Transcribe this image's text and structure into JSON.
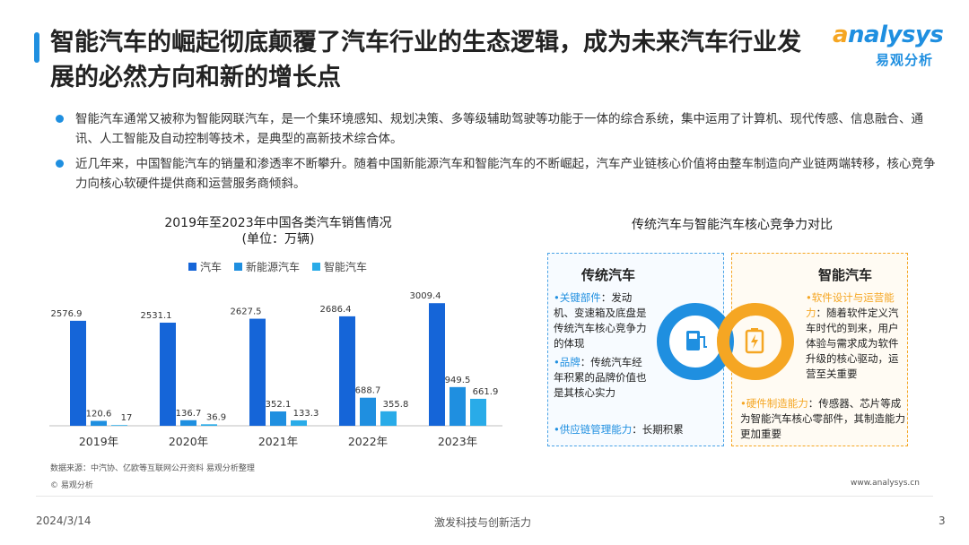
{
  "header": {
    "title": "智能汽车的崛起彻底颠覆了汽车行业的生态逻辑，成为未来汽车行业发展的必然方向和新的增长点",
    "logo_en_a": "a",
    "logo_en_rest": "nalysys",
    "logo_cn": "易观分析"
  },
  "bullets": [
    "智能汽车通常又被称为智能网联汽车，是一个集环境感知、规划决策、多等级辅助驾驶等功能于一体的综合系统，集中运用了计算机、现代传感、信息融合、通讯、人工智能及自动控制等技术，是典型的高新技术综合体。",
    "近几年来，中国智能汽车的销量和渗透率不断攀升。随着中国新能源汽车和智能汽车的不断崛起，汽车产业链核心价值将由整车制造向产业链两端转移，核心竞争力向核心软硬件提供商和运营服务商倾斜。"
  ],
  "chart_data": {
    "type": "bar",
    "title": "2019年至2023年中国各类汽车销售情况",
    "subtitle": "(单位：万辆)",
    "categories": [
      "2019年",
      "2020年",
      "2021年",
      "2022年",
      "2023年"
    ],
    "series": [
      {
        "name": "汽车",
        "color": "#1565d8",
        "values": [
          2576.9,
          2531.1,
          2627.5,
          2686.4,
          3009.4
        ]
      },
      {
        "name": "新能源汽车",
        "color": "#1f8fe0",
        "values": [
          120.6,
          136.7,
          352.1,
          688.7,
          949.5
        ]
      },
      {
        "name": "智能汽车",
        "color": "#29abe8",
        "values": [
          17,
          36.9,
          133.3,
          355.8,
          661.9
        ]
      }
    ],
    "value_labels": [
      [
        "2576.9",
        "2531.1",
        "2627.5",
        "2686.4",
        "3009.4"
      ],
      [
        "120.6",
        "136.7",
        "352.1",
        "688.7",
        "949.5"
      ],
      [
        "17",
        "36.9",
        "133.3",
        "355.8",
        "661.9"
      ]
    ],
    "ylim": [
      0,
      3300
    ],
    "grid": false,
    "legend": "top-center"
  },
  "chart_source": "数据来源：中汽协、亿欧等互联网公开资料 易观分析整理",
  "copyright": "© 易观分析",
  "website": "www.analysys.cn",
  "comparison": {
    "title": "传统汽车与智能汽车核心竞争力对比",
    "left": {
      "title": "传统汽车",
      "p1_key": "关键部件",
      "p1_rest": "：发动机、变速箱及底盘是传统汽车核心竞争力的体现",
      "p2_key": "品牌",
      "p2_rest": "：传统汽车经年积累的品牌价值也是其核心实力",
      "p3_key": "供应链管理能力",
      "p3_rest": "：长期积累"
    },
    "right": {
      "title": "智能汽车",
      "p1_key": "软件设计与运营能力",
      "p1_rest": "：随着软件定义汽车时代的到来，用户体验与需求成为软件升级的核心驱动，运营至关重要",
      "p2_key": "硬件制造能力",
      "p2_rest": "：传感器、芯片等成为智能汽车核心零部件，其制造能力更加重要"
    },
    "left_icon": "fuel-pump-icon",
    "right_icon": "battery-charge-icon"
  },
  "footer": {
    "date": "2024/3/14",
    "slogan": "激发科技与创新活力",
    "page": "3"
  },
  "colors": {
    "accent_blue": "#1f8fe0",
    "accent_orange": "#f5a623"
  }
}
